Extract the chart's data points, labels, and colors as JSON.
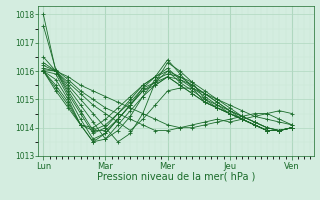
{
  "xlabel": "Pression niveau de la mer( hPa )",
  "ylim": [
    1013.0,
    1018.3
  ],
  "yticks": [
    1013,
    1014,
    1015,
    1016,
    1017,
    1018
  ],
  "day_labels": [
    "Lun",
    "Mar",
    "Mer",
    "Jeu",
    "Ven"
  ],
  "day_positions": [
    0,
    1,
    2,
    3,
    4
  ],
  "xlim": [
    -0.08,
    4.35
  ],
  "bg_color": "#d4ede0",
  "line_color": "#1a6b2a",
  "grid_color_major": "#b0d8c0",
  "grid_color_minor": "#c8e8d4",
  "series": [
    [
      1018.0,
      1016.0,
      1015.8,
      1015.5,
      1015.3,
      1015.1,
      1014.9,
      1014.7,
      1014.5,
      1014.3,
      1014.1,
      1014.0,
      1014.0,
      1014.1,
      1014.2,
      1014.3,
      1014.4,
      1014.5,
      1014.5,
      1014.6,
      1014.5
    ],
    [
      1017.6,
      1016.05,
      1015.7,
      1015.3,
      1015.0,
      1014.7,
      1014.5,
      1014.3,
      1014.1,
      1013.9,
      1013.9,
      1014.0,
      1014.1,
      1014.2,
      1014.3,
      1014.2,
      1014.3,
      1014.4,
      1014.5,
      1014.3,
      1014.1
    ],
    [
      1016.5,
      1016.0,
      1015.6,
      1015.2,
      1014.8,
      1014.5,
      1014.2,
      1013.9,
      1014.3,
      1014.8,
      1015.3,
      1015.4,
      1015.4,
      1015.2,
      1015.0,
      1014.8,
      1014.6,
      1014.4,
      1014.3,
      1014.2,
      1014.1
    ],
    [
      1016.3,
      1016.0,
      1015.5,
      1015.0,
      1014.5,
      1014.0,
      1013.5,
      1013.8,
      1014.5,
      1015.6,
      1015.8,
      1015.7,
      1015.5,
      1015.2,
      1014.9,
      1014.6,
      1014.4,
      1014.2,
      1014.0,
      1013.9,
      1014.0
    ],
    [
      1016.2,
      1016.0,
      1015.4,
      1014.8,
      1014.2,
      1013.6,
      1013.9,
      1014.4,
      1015.1,
      1015.7,
      1015.9,
      1015.8,
      1015.6,
      1015.3,
      1015.0,
      1014.7,
      1014.4,
      1014.2,
      1014.0,
      1013.9,
      1014.0
    ],
    [
      1016.1,
      1016.0,
      1015.3,
      1014.6,
      1013.9,
      1013.9,
      1014.3,
      1014.8,
      1015.4,
      1015.8,
      1016.0,
      1015.8,
      1015.5,
      1015.2,
      1014.9,
      1014.6,
      1014.3,
      1014.1,
      1013.9,
      1013.9,
      1014.0
    ],
    [
      1016.05,
      1016.0,
      1015.2,
      1014.5,
      1013.8,
      1014.0,
      1014.5,
      1015.0,
      1015.5,
      1015.8,
      1016.1,
      1015.7,
      1015.4,
      1015.1,
      1014.8,
      1014.5,
      1014.3,
      1014.1,
      1013.9,
      1013.9,
      1014.0
    ],
    [
      1016.0,
      1015.9,
      1015.1,
      1014.3,
      1013.6,
      1013.8,
      1014.3,
      1014.8,
      1015.3,
      1015.6,
      1016.0,
      1015.6,
      1015.3,
      1015.0,
      1014.7,
      1014.5,
      1014.3,
      1014.1,
      1013.9,
      1013.9,
      1014.0
    ],
    [
      1016.0,
      1015.7,
      1015.0,
      1014.1,
      1013.5,
      1013.6,
      1014.1,
      1014.6,
      1015.1,
      1015.5,
      1015.8,
      1015.5,
      1015.2,
      1014.9,
      1014.7,
      1014.5,
      1014.3,
      1014.1,
      1013.9,
      1013.9,
      1014.0
    ],
    [
      1016.0,
      1015.5,
      1014.9,
      1014.1,
      1013.5,
      1013.8,
      1014.3,
      1014.8,
      1015.3,
      1015.5,
      1015.8,
      1015.5,
      1015.2,
      1014.9,
      1014.7,
      1014.5,
      1014.3,
      1014.1,
      1013.9,
      1013.9,
      1014.0
    ],
    [
      1016.0,
      1015.4,
      1014.8,
      1014.1,
      1013.9,
      1014.1,
      1014.5,
      1014.9,
      1015.4,
      1015.6,
      1016.3,
      1016.0,
      1015.6,
      1015.0,
      1014.8,
      1014.6,
      1014.4,
      1014.2,
      1014.0,
      1013.9,
      1014.0
    ],
    [
      1016.0,
      1015.3,
      1014.7,
      1014.1,
      1014.0,
      1014.3,
      1014.7,
      1015.1,
      1015.5,
      1015.8,
      1016.4,
      1015.9,
      1015.4,
      1014.9,
      1014.7,
      1014.5,
      1014.3,
      1014.1,
      1013.9,
      1013.9,
      1014.0
    ]
  ]
}
